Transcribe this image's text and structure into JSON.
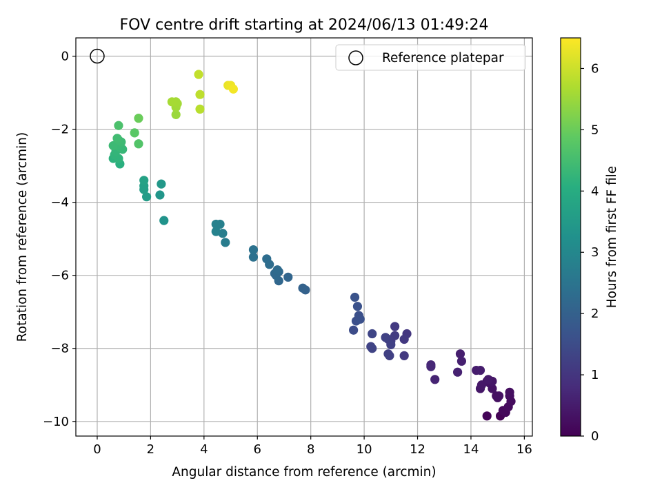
{
  "chart_data": {
    "type": "scatter",
    "title": "FOV centre drift starting at 2024/06/13 01:49:24",
    "xlabel": "Angular distance from reference (arcmin)",
    "ylabel": "Rotation from reference (arcmin)",
    "xlim": [
      -0.8,
      16.3
    ],
    "ylim": [
      -10.4,
      0.5
    ],
    "xticks": [
      0,
      2,
      4,
      6,
      8,
      10,
      12,
      14,
      16
    ],
    "yticks": [
      0,
      -2,
      -4,
      -6,
      -8,
      -10
    ],
    "xtick_labels": [
      "0",
      "2",
      "4",
      "6",
      "8",
      "10",
      "12",
      "14",
      "16"
    ],
    "ytick_labels": [
      "0",
      "−2",
      "−4",
      "−6",
      "−8",
      "−10"
    ],
    "grid": true,
    "legend": {
      "position": "top-right",
      "entries": [
        {
          "label": "Reference platepar",
          "marker": "open-circle"
        }
      ]
    },
    "reference_point": {
      "x": 0,
      "y": 0
    },
    "colorbar": {
      "label": "Hours from first FF file",
      "colormap": "viridis",
      "range": [
        0,
        6.5
      ],
      "ticks": [
        0,
        1,
        2,
        3,
        4,
        5,
        6
      ],
      "tick_labels": [
        "0",
        "1",
        "2",
        "3",
        "4",
        "5",
        "6"
      ]
    },
    "points": [
      {
        "x": 15.1,
        "y": -9.85,
        "c": 0.03
      },
      {
        "x": 14.6,
        "y": -9.85,
        "c": 0.08
      },
      {
        "x": 15.3,
        "y": -9.75,
        "c": 0.12
      },
      {
        "x": 15.2,
        "y": -9.7,
        "c": 0.15
      },
      {
        "x": 15.4,
        "y": -9.6,
        "c": 0.18
      },
      {
        "x": 15.5,
        "y": -9.45,
        "c": 0.2
      },
      {
        "x": 15.45,
        "y": -9.3,
        "c": 0.22
      },
      {
        "x": 15.45,
        "y": -9.2,
        "c": 0.25
      },
      {
        "x": 15.0,
        "y": -9.35,
        "c": 0.27
      },
      {
        "x": 14.95,
        "y": -9.3,
        "c": 0.28
      },
      {
        "x": 15.05,
        "y": -9.3,
        "c": 0.3
      },
      {
        "x": 14.8,
        "y": -9.1,
        "c": 0.32
      },
      {
        "x": 14.7,
        "y": -8.95,
        "c": 0.34
      },
      {
        "x": 14.6,
        "y": -8.9,
        "c": 0.36
      },
      {
        "x": 14.8,
        "y": -8.9,
        "c": 0.38
      },
      {
        "x": 14.35,
        "y": -9.1,
        "c": 0.4
      },
      {
        "x": 14.4,
        "y": -9.0,
        "c": 0.42
      },
      {
        "x": 14.65,
        "y": -8.85,
        "c": 0.44
      },
      {
        "x": 14.2,
        "y": -8.6,
        "c": 0.5
      },
      {
        "x": 14.35,
        "y": -8.6,
        "c": 0.52
      },
      {
        "x": 13.6,
        "y": -8.15,
        "c": 0.55
      },
      {
        "x": 13.65,
        "y": -8.35,
        "c": 0.58
      },
      {
        "x": 13.5,
        "y": -8.65,
        "c": 0.6
      },
      {
        "x": 12.65,
        "y": -8.85,
        "c": 0.65
      },
      {
        "x": 12.5,
        "y": -8.45,
        "c": 0.7
      },
      {
        "x": 12.5,
        "y": -8.5,
        "c": 0.72
      },
      {
        "x": 11.6,
        "y": -7.6,
        "c": 1.0
      },
      {
        "x": 11.5,
        "y": -7.75,
        "c": 1.05
      },
      {
        "x": 11.5,
        "y": -8.2,
        "c": 1.08
      },
      {
        "x": 11.15,
        "y": -7.4,
        "c": 1.1
      },
      {
        "x": 11.15,
        "y": -7.65,
        "c": 1.12
      },
      {
        "x": 11.0,
        "y": -7.8,
        "c": 1.15
      },
      {
        "x": 10.9,
        "y": -7.75,
        "c": 1.18
      },
      {
        "x": 10.9,
        "y": -8.15,
        "c": 1.2
      },
      {
        "x": 10.95,
        "y": -8.2,
        "c": 1.22
      },
      {
        "x": 11.0,
        "y": -7.9,
        "c": 1.25
      },
      {
        "x": 10.8,
        "y": -7.7,
        "c": 1.28
      },
      {
        "x": 10.25,
        "y": -7.95,
        "c": 1.3
      },
      {
        "x": 10.3,
        "y": -8.0,
        "c": 1.32
      },
      {
        "x": 10.3,
        "y": -7.6,
        "c": 1.35
      },
      {
        "x": 9.6,
        "y": -7.5,
        "c": 1.5
      },
      {
        "x": 9.7,
        "y": -7.25,
        "c": 1.55
      },
      {
        "x": 9.8,
        "y": -7.1,
        "c": 1.58
      },
      {
        "x": 9.85,
        "y": -7.2,
        "c": 1.6
      },
      {
        "x": 9.75,
        "y": -6.85,
        "c": 1.62
      },
      {
        "x": 9.65,
        "y": -6.6,
        "c": 1.65
      },
      {
        "x": 7.8,
        "y": -6.4,
        "c": 2.0
      },
      {
        "x": 7.7,
        "y": -6.35,
        "c": 2.02
      },
      {
        "x": 7.15,
        "y": -6.05,
        "c": 2.1
      },
      {
        "x": 6.8,
        "y": -6.15,
        "c": 2.15
      },
      {
        "x": 6.8,
        "y": -5.9,
        "c": 2.18
      },
      {
        "x": 6.7,
        "y": -6.0,
        "c": 2.2
      },
      {
        "x": 6.65,
        "y": -5.95,
        "c": 2.22
      },
      {
        "x": 6.75,
        "y": -5.85,
        "c": 2.25
      },
      {
        "x": 6.45,
        "y": -5.7,
        "c": 2.3
      },
      {
        "x": 6.35,
        "y": -5.55,
        "c": 2.32
      },
      {
        "x": 5.85,
        "y": -5.5,
        "c": 2.4
      },
      {
        "x": 5.85,
        "y": -5.3,
        "c": 2.45
      },
      {
        "x": 4.8,
        "y": -5.1,
        "c": 2.7
      },
      {
        "x": 4.7,
        "y": -4.85,
        "c": 2.75
      },
      {
        "x": 4.6,
        "y": -4.6,
        "c": 2.8
      },
      {
        "x": 4.45,
        "y": -4.6,
        "c": 2.82
      },
      {
        "x": 4.45,
        "y": -4.8,
        "c": 2.85
      },
      {
        "x": 2.5,
        "y": -4.5,
        "c": 3.3
      },
      {
        "x": 2.35,
        "y": -3.8,
        "c": 3.4
      },
      {
        "x": 2.4,
        "y": -3.5,
        "c": 3.45
      },
      {
        "x": 1.85,
        "y": -3.85,
        "c": 3.55
      },
      {
        "x": 1.75,
        "y": -3.65,
        "c": 3.6
      },
      {
        "x": 1.75,
        "y": -3.55,
        "c": 3.65
      },
      {
        "x": 1.75,
        "y": -3.4,
        "c": 3.7
      },
      {
        "x": 0.85,
        "y": -2.95,
        "c": 4.1
      },
      {
        "x": 0.6,
        "y": -2.8,
        "c": 4.15
      },
      {
        "x": 0.8,
        "y": -2.8,
        "c": 4.2
      },
      {
        "x": 0.65,
        "y": -2.7,
        "c": 4.22
      },
      {
        "x": 0.7,
        "y": -2.6,
        "c": 4.25
      },
      {
        "x": 0.95,
        "y": -2.55,
        "c": 4.3
      },
      {
        "x": 0.85,
        "y": -2.5,
        "c": 4.32
      },
      {
        "x": 0.75,
        "y": -2.45,
        "c": 4.35
      },
      {
        "x": 0.6,
        "y": -2.45,
        "c": 4.38
      },
      {
        "x": 0.9,
        "y": -2.35,
        "c": 4.4
      },
      {
        "x": 0.8,
        "y": -2.3,
        "c": 4.42
      },
      {
        "x": 0.75,
        "y": -2.25,
        "c": 4.45
      },
      {
        "x": 0.8,
        "y": -1.9,
        "c": 4.6
      },
      {
        "x": 1.55,
        "y": -2.4,
        "c": 4.7
      },
      {
        "x": 1.4,
        "y": -2.1,
        "c": 4.8
      },
      {
        "x": 1.55,
        "y": -1.7,
        "c": 5.0
      },
      {
        "x": 2.95,
        "y": -1.6,
        "c": 5.5
      },
      {
        "x": 2.95,
        "y": -1.4,
        "c": 5.55
      },
      {
        "x": 3.0,
        "y": -1.3,
        "c": 5.58
      },
      {
        "x": 2.95,
        "y": -1.25,
        "c": 5.6
      },
      {
        "x": 2.8,
        "y": -1.25,
        "c": 5.62
      },
      {
        "x": 3.85,
        "y": -1.45,
        "c": 5.8
      },
      {
        "x": 3.85,
        "y": -1.05,
        "c": 5.85
      },
      {
        "x": 3.8,
        "y": -0.5,
        "c": 5.9
      },
      {
        "x": 4.9,
        "y": -0.8,
        "c": 6.3
      },
      {
        "x": 5.0,
        "y": -0.8,
        "c": 6.35
      },
      {
        "x": 5.1,
        "y": -0.9,
        "c": 6.4
      }
    ]
  }
}
